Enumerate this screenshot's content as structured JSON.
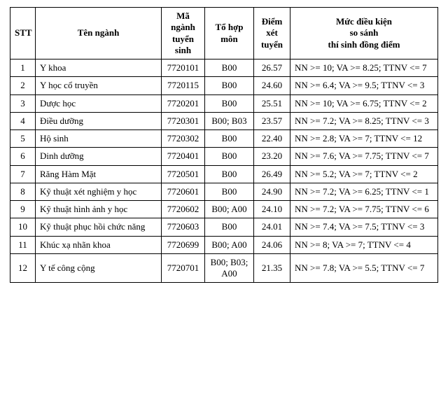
{
  "columns": {
    "stt": "STT",
    "ten": "Tên ngành",
    "ma": "Mã ngành tuyển sinh",
    "tohop": "Tổ hợp môn",
    "diem": "Điểm xét tuyển",
    "muc_line1": "Mức điều kiện",
    "muc_line2": "so sánh",
    "muc_line3": "thí sinh đồng điểm"
  },
  "rows": [
    {
      "stt": "1",
      "ten": "Y khoa",
      "ma": "7720101",
      "tohop": "B00",
      "diem": "26.57",
      "muc": "NN >= 10; VA >= 8.25; TTNV <= 7"
    },
    {
      "stt": "2",
      "ten": "Y học cổ truyền",
      "ma": "7720115",
      "tohop": "B00",
      "diem": "24.60",
      "muc": "NN >= 6.4; VA >= 9.5; TTNV <= 3"
    },
    {
      "stt": "3",
      "ten": "Dược học",
      "ma": "7720201",
      "tohop": "B00",
      "diem": "25.51",
      "muc": "NN >= 10; VA >= 6.75; TTNV <= 2"
    },
    {
      "stt": "4",
      "ten": "Điều dưỡng",
      "ma": "7720301",
      "tohop": "B00; B03",
      "diem": "23.57",
      "muc": "NN >= 7.2; VA >= 8.25; TTNV <= 3"
    },
    {
      "stt": "5",
      "ten": "Hộ sinh",
      "ma": "7720302",
      "tohop": "B00",
      "diem": "22.40",
      "muc": "NN >= 2.8; VA >= 7; TTNV <= 12"
    },
    {
      "stt": "6",
      "ten": "Dinh dưỡng",
      "ma": "7720401",
      "tohop": "B00",
      "diem": "23.20",
      "muc": "NN >= 7.6; VA >= 7.75; TTNV <= 7"
    },
    {
      "stt": "7",
      "ten": "Răng Hàm Mặt",
      "ma": "7720501",
      "tohop": "B00",
      "diem": "26.49",
      "muc": "NN >= 5.2; VA >= 7; TTNV <= 2"
    },
    {
      "stt": "8",
      "ten": "Kỹ thuật xét nghiệm y học",
      "ma": "7720601",
      "tohop": "B00",
      "diem": "24.90",
      "muc": "NN >= 7.2; VA >= 6.25; TTNV <= 1"
    },
    {
      "stt": "9",
      "ten": "Kỹ thuật hình ảnh y học",
      "ma": "7720602",
      "tohop": "B00; A00",
      "diem": "24.10",
      "muc": "NN >= 7.2; VA >= 7.75; TTNV <= 6"
    },
    {
      "stt": "10",
      "ten": "Kỹ thuật phục hồi chức năng",
      "ma": "7720603",
      "tohop": "B00",
      "diem": "24.01",
      "muc": "NN >= 7.4; VA >= 7.5; TTNV <= 3"
    },
    {
      "stt": "11",
      "ten": "Khúc xạ nhãn khoa",
      "ma": "7720699",
      "tohop": "B00; A00",
      "diem": "24.06",
      "muc": "NN >= 8; VA >= 7; TTNV <= 4"
    },
    {
      "stt": "12",
      "ten": "Y tế công cộng",
      "ma": "7720701",
      "tohop": "B00; B03; A00",
      "diem": "21.35",
      "muc": "NN >= 7.8; VA >= 5.5; TTNV <= 7"
    }
  ],
  "style": {
    "font_family": "Times New Roman",
    "font_size_pt": 10,
    "border_color": "#000000",
    "background_color": "#ffffff",
    "text_color": "#000000"
  }
}
